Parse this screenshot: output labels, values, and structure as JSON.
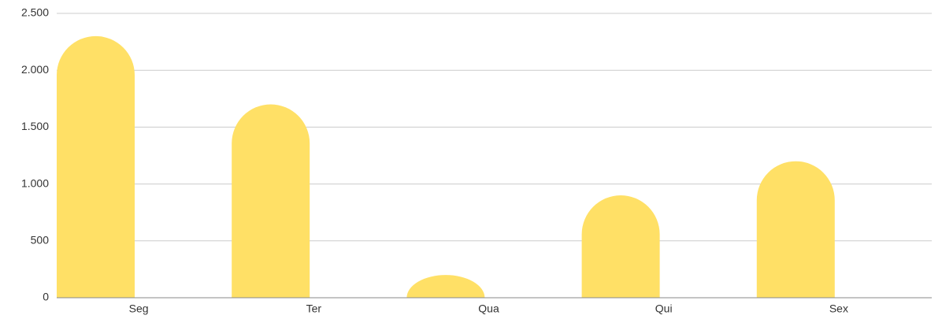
{
  "chart_data": {
    "type": "bar",
    "categories": [
      "Seg",
      "Ter",
      "Qua",
      "Qui",
      "Sex"
    ],
    "values": [
      2300,
      1700,
      200,
      900,
      1200
    ],
    "color": "#ffe066",
    "ylim": [
      0,
      2500
    ],
    "yticks": [
      0,
      500,
      {
        "value": 1000,
        "label": "1.000"
      },
      {
        "value": 1500,
        "label": "1.500"
      },
      {
        "value": 2000,
        "label": "2.000"
      },
      {
        "value": 2500,
        "label": "2.500"
      }
    ],
    "grid": true
  }
}
